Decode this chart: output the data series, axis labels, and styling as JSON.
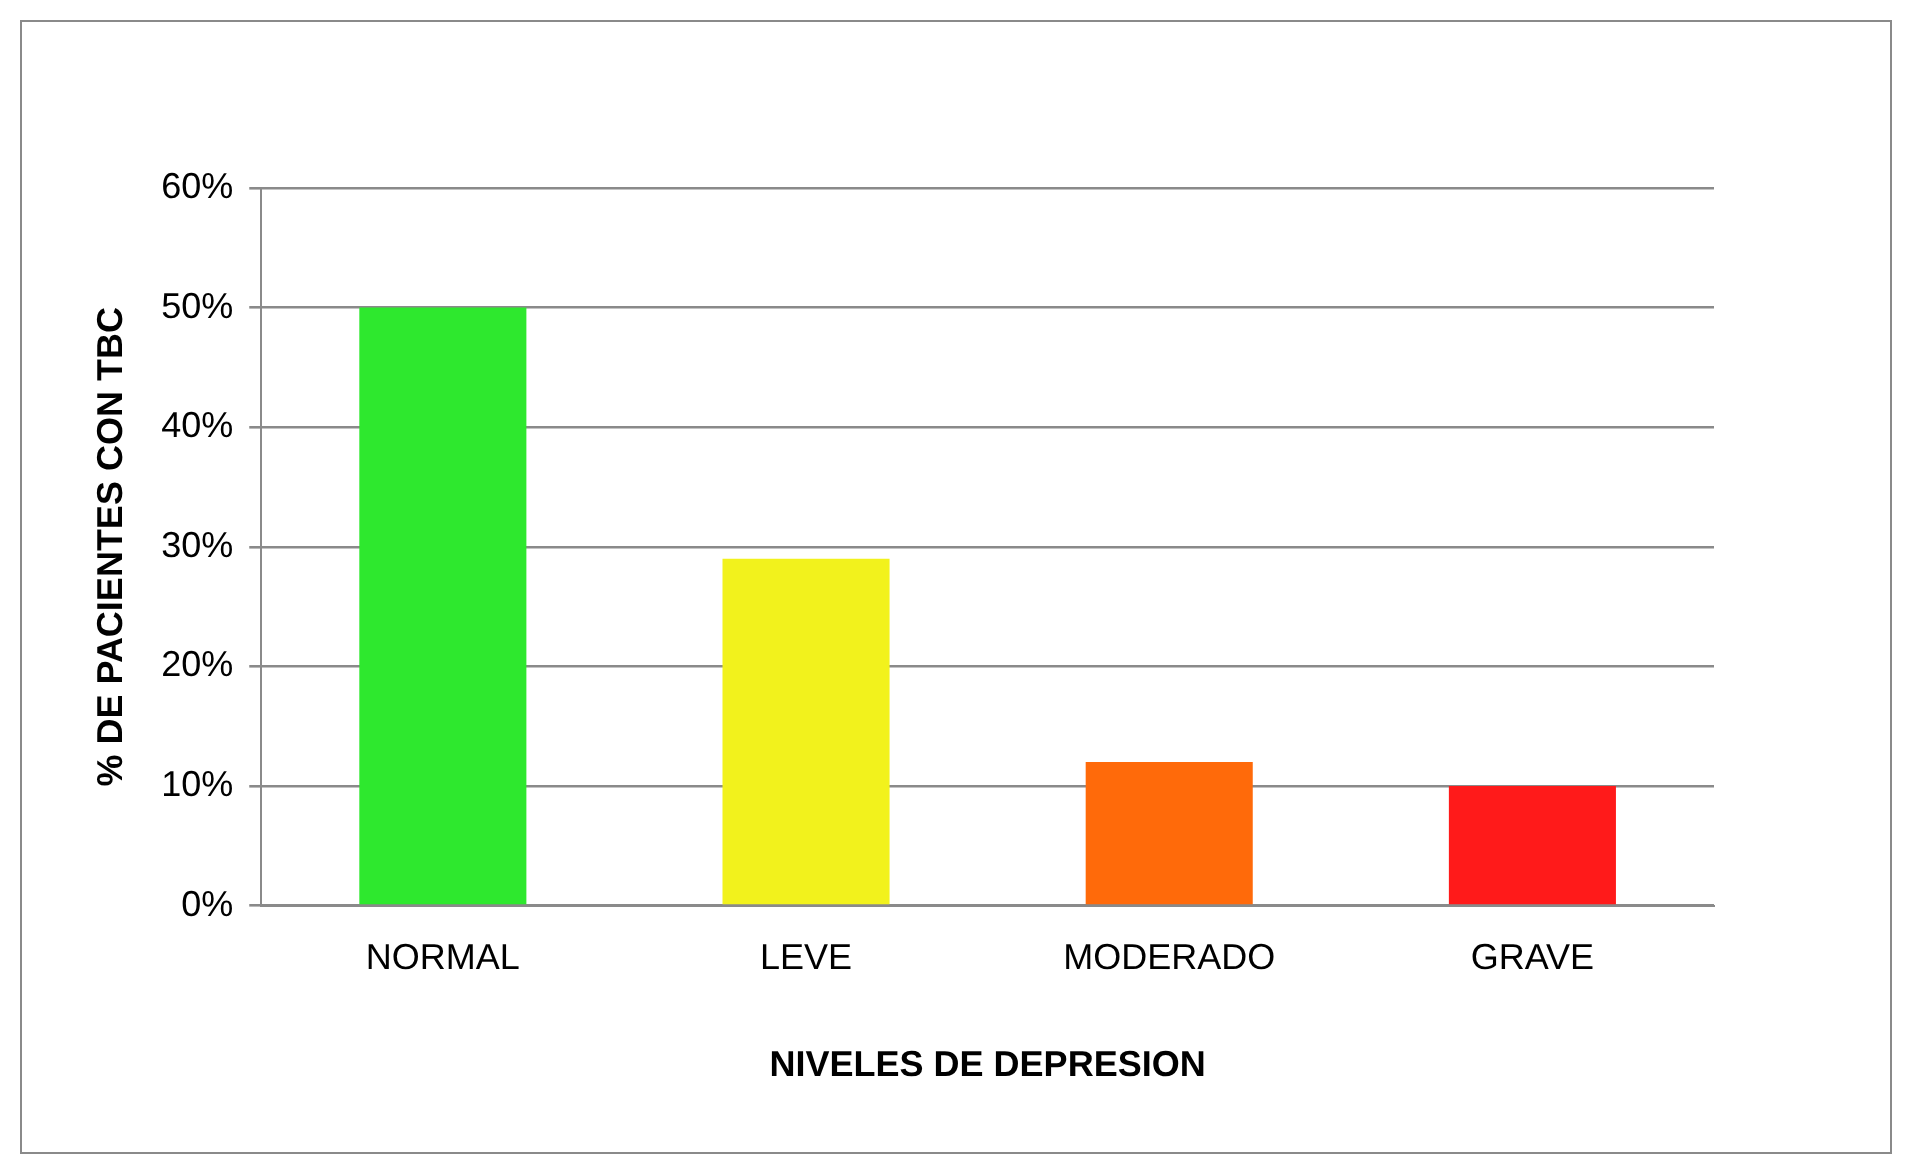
{
  "chart_data": {
    "type": "bar",
    "xlabel": "NIVELES DE DEPRESION",
    "ylabel": "% DE PACIENTES CON TBC",
    "categories": [
      "NORMAL",
      "LEVE",
      "MODERADO",
      "GRAVE"
    ],
    "values": [
      50,
      29,
      12,
      10
    ],
    "colors": [
      "#2ee82e",
      "#f2f21c",
      "#ff6a0a",
      "#ff1a1a"
    ],
    "ylim": [
      0,
      60
    ],
    "yticks": [
      {
        "value": 0,
        "label": "0%"
      },
      {
        "value": 10,
        "label": "10%"
      },
      {
        "value": 20,
        "label": "20%"
      },
      {
        "value": 30,
        "label": "30%"
      },
      {
        "value": 40,
        "label": "40%"
      },
      {
        "value": 50,
        "label": "50%"
      },
      {
        "value": 60,
        "label": "60%"
      }
    ],
    "grid": "y",
    "legend": false
  }
}
